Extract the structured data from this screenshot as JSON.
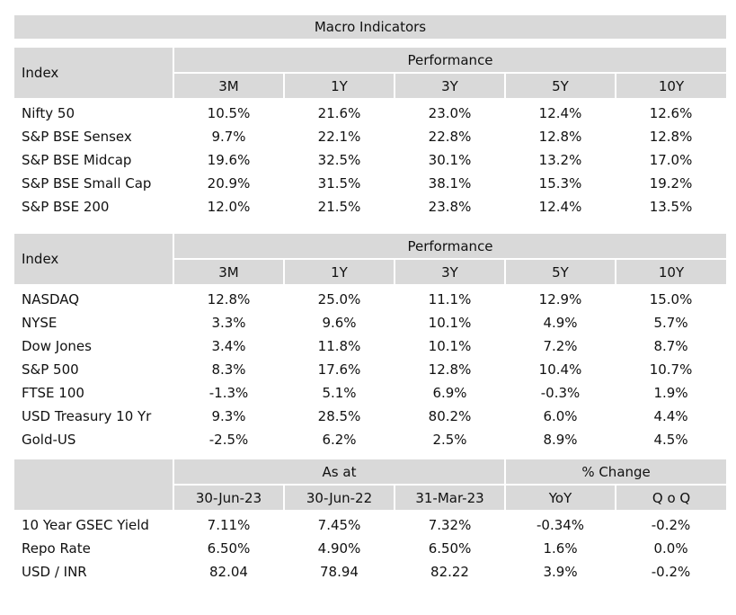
{
  "title": "Macro Indicators",
  "domestic": {
    "index_label": "Index",
    "group_label": "Performance",
    "columns": [
      "3M",
      "1Y",
      "3Y",
      "5Y",
      "10Y"
    ],
    "rows": [
      {
        "name": "Nifty 50",
        "values": [
          "10.5%",
          "21.6%",
          "23.0%",
          "12.4%",
          "12.6%"
        ]
      },
      {
        "name": "S&P BSE Sensex",
        "values": [
          "9.7%",
          "22.1%",
          "22.8%",
          "12.8%",
          "12.8%"
        ]
      },
      {
        "name": "S&P BSE Midcap",
        "values": [
          "19.6%",
          "32.5%",
          "30.1%",
          "13.2%",
          "17.0%"
        ]
      },
      {
        "name": "S&P BSE Small Cap",
        "values": [
          "20.9%",
          "31.5%",
          "38.1%",
          "15.3%",
          "19.2%"
        ]
      },
      {
        "name": "S&P BSE 200",
        "values": [
          "12.0%",
          "21.5%",
          "23.8%",
          "12.4%",
          "13.5%"
        ]
      }
    ]
  },
  "global": {
    "index_label": "Index",
    "group_label": "Performance",
    "columns": [
      "3M",
      "1Y",
      "3Y",
      "5Y",
      "10Y"
    ],
    "rows": [
      {
        "name": "NASDAQ",
        "values": [
          "12.8%",
          "25.0%",
          "11.1%",
          "12.9%",
          "15.0%"
        ]
      },
      {
        "name": "NYSE",
        "values": [
          "3.3%",
          "9.6%",
          "10.1%",
          "4.9%",
          "5.7%"
        ]
      },
      {
        "name": "Dow Jones",
        "values": [
          "3.4%",
          "11.8%",
          "10.1%",
          "7.2%",
          "8.7%"
        ]
      },
      {
        "name": "S&P 500",
        "values": [
          "8.3%",
          "17.6%",
          "12.8%",
          "10.4%",
          "10.7%"
        ]
      },
      {
        "name": "FTSE 100",
        "values": [
          "-1.3%",
          "5.1%",
          "6.9%",
          "-0.3%",
          "1.9%"
        ]
      },
      {
        "name": "USD Treasury 10 Yr",
        "values": [
          "9.3%",
          "28.5%",
          "80.2%",
          "6.0%",
          "4.4%"
        ]
      },
      {
        "name": "Gold-US",
        "values": [
          "-2.5%",
          "6.2%",
          "2.5%",
          "8.9%",
          "4.5%"
        ]
      }
    ]
  },
  "rates": {
    "asat_label": "As at",
    "change_label": "% Change",
    "columns": [
      "30-Jun-23",
      "30-Jun-22",
      "31-Mar-23",
      "YoY",
      "Q o Q"
    ],
    "rows": [
      {
        "name": "10 Year GSEC Yield",
        "values": [
          "7.11%",
          "7.45%",
          "7.32%",
          "-0.34%",
          "-0.2%"
        ]
      },
      {
        "name": "Repo Rate",
        "values": [
          "6.50%",
          "4.90%",
          "6.50%",
          "1.6%",
          "0.0%"
        ]
      },
      {
        "name": "USD / INR",
        "values": [
          "82.04",
          "78.94",
          "82.22",
          "3.9%",
          "-0.2%"
        ]
      }
    ]
  }
}
